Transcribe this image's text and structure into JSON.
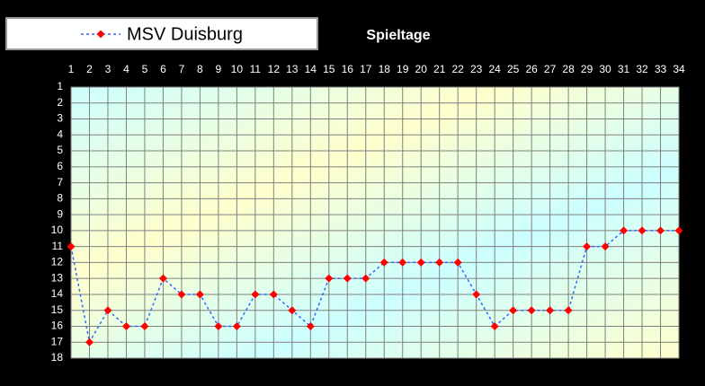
{
  "chart_data": {
    "type": "line",
    "x_label": "Spieltage",
    "x": [
      1,
      2,
      3,
      4,
      5,
      6,
      7,
      8,
      9,
      10,
      11,
      12,
      13,
      14,
      15,
      16,
      17,
      18,
      19,
      20,
      21,
      22,
      23,
      24,
      25,
      26,
      27,
      28,
      29,
      30,
      31,
      32,
      33,
      34
    ],
    "series": [
      {
        "name": "MSV Duisburg",
        "color": "#3366ff",
        "marker_color": "#ff0000",
        "values": [
          11,
          17,
          15,
          16,
          16,
          13,
          14,
          14,
          16,
          16,
          14,
          14,
          15,
          16,
          13,
          13,
          13,
          12,
          12,
          12,
          12,
          12,
          14,
          16,
          15,
          15,
          15,
          15,
          11,
          11,
          10,
          10,
          10,
          10
        ]
      }
    ],
    "xlim": [
      1,
      34
    ],
    "xticks": [
      1,
      2,
      3,
      4,
      5,
      6,
      7,
      8,
      9,
      10,
      11,
      12,
      13,
      14,
      15,
      16,
      17,
      18,
      19,
      20,
      21,
      22,
      23,
      24,
      25,
      26,
      27,
      28,
      29,
      30,
      31,
      32,
      33,
      34
    ],
    "ylim": [
      1,
      18
    ],
    "yticks": [
      1,
      2,
      3,
      4,
      5,
      6,
      7,
      8,
      9,
      10,
      11,
      12,
      13,
      14,
      15,
      16,
      17,
      18
    ],
    "invert_y": true,
    "grid": true,
    "dashed_line": true
  }
}
